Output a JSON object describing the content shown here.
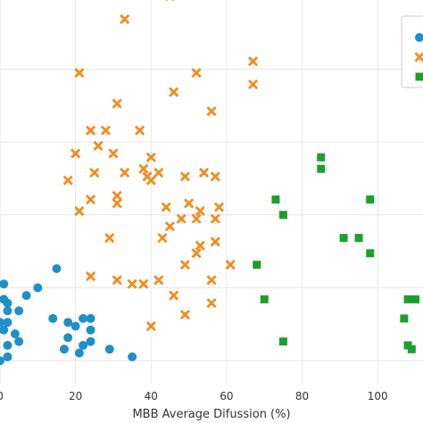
{
  "chart_data": {
    "type": "scatter",
    "title": "",
    "xlabel": "MBB Average Difussion (%)",
    "ylabel": "",
    "xlim": [
      0,
      112
    ],
    "ylim": [
      0,
      100
    ],
    "x_ticks": [
      0,
      20,
      40,
      60,
      80,
      100
    ],
    "x_tick_labels": [
      "0",
      "20",
      "40",
      "60",
      "80",
      "100"
    ],
    "y_gridlines": [
      6,
      25,
      44,
      63,
      82,
      101
    ],
    "grid": true,
    "background": "#ffffff",
    "grid_color": "#e6e6e6",
    "legend": {
      "placement": "top-right",
      "entries": [
        {
          "marker": "circle",
          "color": "#1f8fc8",
          "label": ""
        },
        {
          "marker": "x",
          "color": "#f28c1e",
          "label": ""
        },
        {
          "marker": "square",
          "color": "#1ca02c",
          "label": ""
        }
      ]
    },
    "series": [
      {
        "marker": "circle",
        "color": "#1f8fc8",
        "points": [
          [
            1,
            26
          ],
          [
            7,
            23
          ],
          [
            10,
            25
          ],
          [
            15,
            30
          ],
          [
            0,
            16
          ],
          [
            1,
            22
          ],
          [
            2,
            19
          ],
          [
            2,
            21
          ],
          [
            5,
            19
          ],
          [
            1,
            14
          ],
          [
            2,
            16
          ],
          [
            2,
            10
          ],
          [
            4,
            13
          ],
          [
            5,
            11
          ],
          [
            14,
            17
          ],
          [
            18,
            16
          ],
          [
            20,
            15
          ],
          [
            22,
            17
          ],
          [
            24,
            17
          ],
          [
            24,
            14
          ],
          [
            18,
            12
          ],
          [
            22,
            10
          ],
          [
            17,
            9
          ],
          [
            21,
            8
          ],
          [
            24,
            11
          ],
          [
            29,
            9
          ],
          [
            35,
            7
          ],
          [
            2,
            7
          ],
          [
            0,
            6
          ]
        ]
      },
      {
        "marker": "x",
        "color": "#f28c1e",
        "points": [
          [
            45,
            101
          ],
          [
            33,
            95
          ],
          [
            67,
            84
          ],
          [
            52,
            81
          ],
          [
            21,
            81
          ],
          [
            67,
            78
          ],
          [
            46,
            76
          ],
          [
            31,
            73
          ],
          [
            56,
            71
          ],
          [
            24,
            66
          ],
          [
            28,
            66
          ],
          [
            37,
            66
          ],
          [
            26,
            62
          ],
          [
            30,
            60
          ],
          [
            20,
            60
          ],
          [
            40,
            59
          ],
          [
            38,
            56
          ],
          [
            25,
            55
          ],
          [
            33,
            55
          ],
          [
            42,
            55
          ],
          [
            54,
            55
          ],
          [
            57,
            54
          ],
          [
            49,
            54
          ],
          [
            18,
            53
          ],
          [
            39,
            54
          ],
          [
            40,
            53
          ],
          [
            31,
            49
          ],
          [
            24,
            48
          ],
          [
            31,
            47
          ],
          [
            21,
            45
          ],
          [
            50,
            47
          ],
          [
            58,
            46
          ],
          [
            44,
            46
          ],
          [
            53,
            45
          ],
          [
            52,
            43
          ],
          [
            57,
            43
          ],
          [
            48,
            43
          ],
          [
            45,
            41
          ],
          [
            43,
            38
          ],
          [
            29,
            38
          ],
          [
            57,
            37
          ],
          [
            53,
            36
          ],
          [
            52,
            34
          ],
          [
            49,
            31
          ],
          [
            61,
            31
          ],
          [
            24,
            28
          ],
          [
            31,
            27
          ],
          [
            42,
            27
          ],
          [
            56,
            27
          ],
          [
            35,
            26
          ],
          [
            38,
            26
          ],
          [
            46,
            23
          ],
          [
            56,
            21
          ],
          [
            49,
            18
          ],
          [
            40,
            15
          ]
        ]
      },
      {
        "marker": "square",
        "color": "#1ca02c",
        "points": [
          [
            85,
            59
          ],
          [
            85,
            56
          ],
          [
            73,
            48
          ],
          [
            75,
            44
          ],
          [
            98,
            48
          ],
          [
            91,
            38
          ],
          [
            95,
            38
          ],
          [
            98,
            34
          ],
          [
            68,
            31
          ],
          [
            70,
            22
          ],
          [
            108,
            22
          ],
          [
            110,
            22
          ],
          [
            107,
            17
          ],
          [
            75,
            11
          ],
          [
            108,
            10
          ],
          [
            109,
            9
          ]
        ]
      }
    ]
  }
}
